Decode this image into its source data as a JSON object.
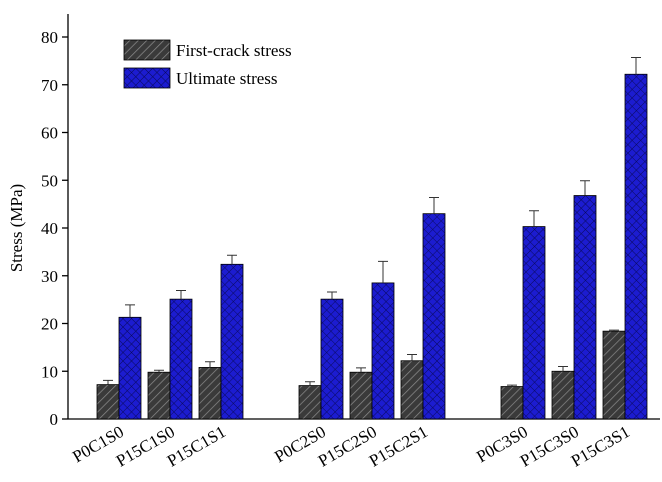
{
  "chart_data": {
    "type": "bar",
    "ylabel": "Stress (MPa)",
    "categories": [
      "P0C1S0",
      "P15C1S0",
      "P15C1S1",
      "P0C2S0",
      "P15C2S0",
      "P15C2S1",
      "P0C3S0",
      "P15C3S0",
      "P15C3S1"
    ],
    "series": [
      {
        "name": "First-crack stress",
        "color": "#3a3a3a",
        "values": [
          7.2,
          9.8,
          10.8,
          7.0,
          9.8,
          12.2,
          6.8,
          10.0,
          18.4
        ],
        "errors": [
          0.9,
          0.4,
          1.2,
          0.8,
          0.9,
          1.3,
          0.3,
          1.0,
          0.2
        ]
      },
      {
        "name": "Ultimate stress",
        "color": "#1c1cd0",
        "values": [
          21.3,
          25.1,
          32.4,
          25.1,
          28.5,
          43.0,
          40.3,
          46.8,
          72.2
        ],
        "errors": [
          2.6,
          1.8,
          1.9,
          1.5,
          4.5,
          3.4,
          3.3,
          3.1,
          3.5
        ]
      }
    ],
    "ylim": [
      0,
      80
    ],
    "yticks": [
      0,
      10,
      20,
      30,
      40,
      50,
      60,
      70,
      80
    ],
    "legend": "upper left"
  }
}
